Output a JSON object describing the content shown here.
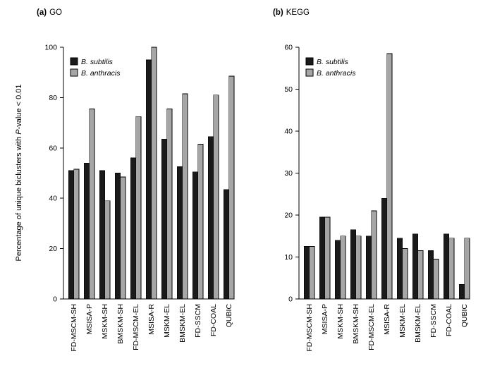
{
  "figure": {
    "background": "#ffffff"
  },
  "ylabel": {
    "pre": "Percentage of unique biclusters with",
    "italic": "P",
    "post": "-value < 0.01",
    "full": "Percentage of unique biclusters with P-value < 0.01"
  },
  "legend": {
    "series": [
      "B. subtilis",
      "B. anthracis"
    ],
    "position": "top-left"
  },
  "colors": {
    "b_subtilis": "#1a1a1a",
    "b_anthracis": "#a6a6a6",
    "background": "#ffffff"
  },
  "chart_data": [
    {
      "type": "bar",
      "label": "(a)",
      "title": "GO",
      "ylabel": "Percentage of unique biclusters with P-value < 0.01",
      "ylim": [
        0,
        100
      ],
      "yticks": [
        0,
        20,
        40,
        60,
        80,
        100
      ],
      "grid": false,
      "legend_position": "top-left",
      "categories": [
        "FD-MSCM-SH",
        "MSISA-P",
        "MSKM-SH",
        "BMSKM-SH",
        "FD-MSCM-EL",
        "MSISA-R",
        "MSKM-EL",
        "BMSKM-EL",
        "FD-SSCM",
        "FD-COAL",
        "QUBIC"
      ],
      "series": [
        {
          "name": "B. subtilis",
          "values": [
            51,
            54,
            51,
            50,
            56,
            95,
            63.5,
            52.5,
            50.5,
            64.5,
            43.5
          ]
        },
        {
          "name": "B. anthracis",
          "values": [
            51.5,
            75.5,
            39,
            48.5,
            72.5,
            100,
            75.5,
            81.5,
            61.5,
            81,
            88.5
          ]
        }
      ]
    },
    {
      "type": "bar",
      "label": "(b)",
      "title": "KEGG",
      "ylim": [
        0,
        60
      ],
      "yticks": [
        0,
        10,
        20,
        30,
        40,
        50,
        60
      ],
      "grid": false,
      "legend_position": "top-left",
      "categories": [
        "FD-MSCM-SH",
        "MSISA-P",
        "MSKM-SH",
        "BMSKM-SH",
        "FD-MSCM-EL",
        "MSISA-R",
        "MSKM-EL",
        "BMSKM-EL",
        "FD-SSCM",
        "FD-COAL",
        "QUBIC"
      ],
      "series": [
        {
          "name": "B. subtilis",
          "values": [
            12.5,
            19.5,
            14,
            16.5,
            15,
            24,
            14.5,
            15.5,
            11.5,
            15.5,
            3.5
          ]
        },
        {
          "name": "B. anthracis",
          "values": [
            12.5,
            19.5,
            15,
            15,
            21,
            58.5,
            12,
            11.5,
            9.5,
            14.5,
            14.5
          ]
        }
      ]
    }
  ]
}
